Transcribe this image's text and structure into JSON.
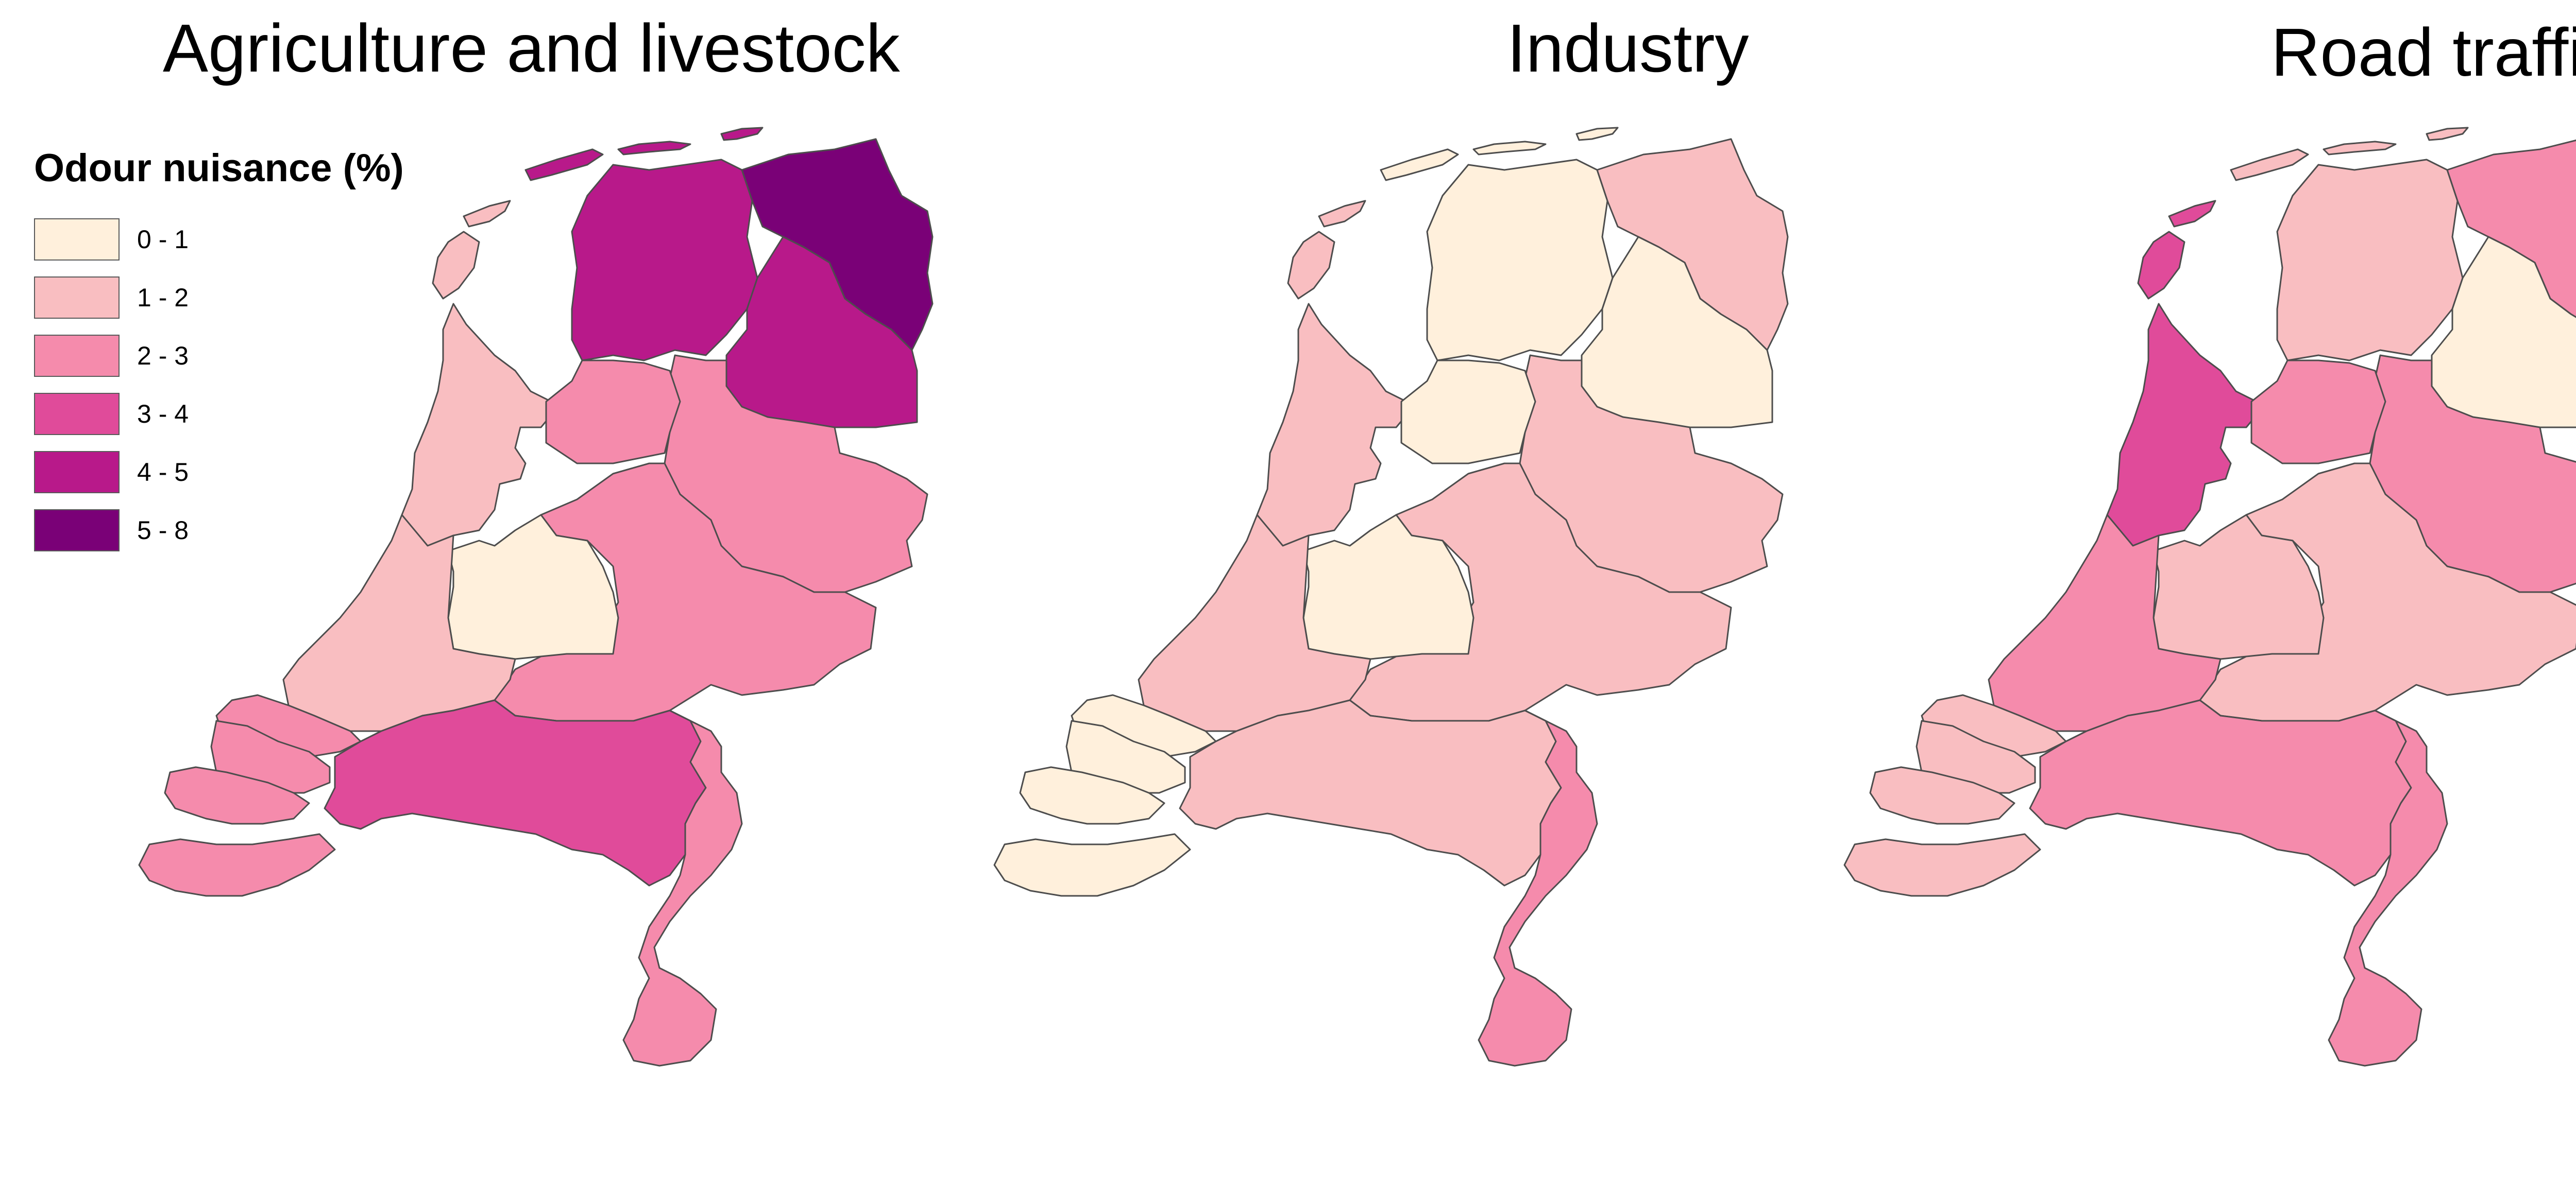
{
  "legend": {
    "title": "Odour nuisance (%)",
    "classes": [
      {
        "label": "0 - 1",
        "color": "#fff0dc"
      },
      {
        "label": "1 - 2",
        "color": "#f9bec1"
      },
      {
        "label": "2 - 3",
        "color": "#f58bac"
      },
      {
        "label": "3 - 4",
        "color": "#e04b9a"
      },
      {
        "label": "4 - 5",
        "color": "#b8198a"
      },
      {
        "label": "5 - 8",
        "color": "#7a0177"
      }
    ]
  },
  "maps": [
    {
      "title": "Agriculture and livestock",
      "provinces": {
        "groningen": "5 - 8",
        "friesland": "4 - 5",
        "drenthe": "4 - 5",
        "overijssel": "2 - 3",
        "flevoland": "2 - 3",
        "gelderland": "2 - 3",
        "utrecht": "0 - 1",
        "noord-holland": "1 - 2",
        "zuid-holland": "1 - 2",
        "zeeland": "2 - 3",
        "noord-brabant": "3 - 4",
        "limburg": "2 - 3"
      }
    },
    {
      "title": "Industry",
      "provinces": {
        "groningen": "1 - 2",
        "friesland": "0 - 1",
        "drenthe": "0 - 1",
        "overijssel": "1 - 2",
        "flevoland": "0 - 1",
        "gelderland": "1 - 2",
        "utrecht": "0 - 1",
        "noord-holland": "1 - 2",
        "zuid-holland": "1 - 2",
        "zeeland": "0 - 1",
        "noord-brabant": "1 - 2",
        "limburg": "2 - 3"
      }
    },
    {
      "title": "Road traffic",
      "provinces": {
        "groningen": "2 - 3",
        "friesland": "1 - 2",
        "drenthe": "0 - 1",
        "overijssel": "2 - 3",
        "flevoland": "2 - 3",
        "gelderland": "1 - 2",
        "utrecht": "1 - 2",
        "noord-holland": "3 - 4",
        "zuid-holland": "2 - 3",
        "zeeland": "1 - 2",
        "noord-brabant": "2 - 3",
        "limburg": "2 - 3"
      }
    }
  ]
}
